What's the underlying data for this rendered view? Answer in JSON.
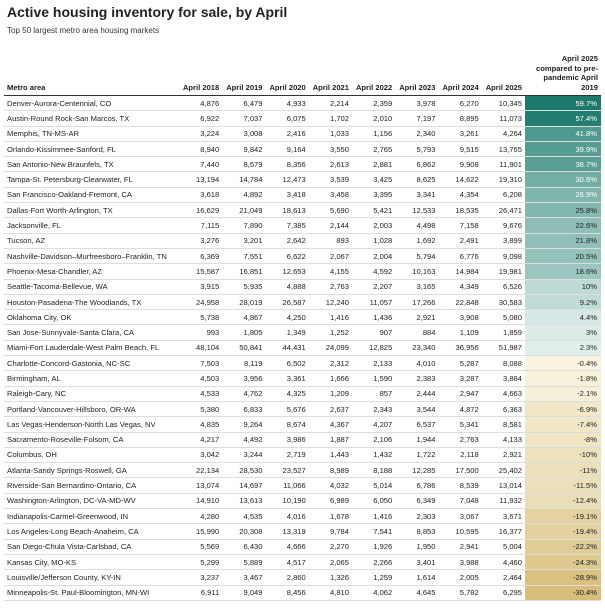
{
  "header": {
    "title": "Active housing inventory for sale, by April",
    "subtitle": "Top 50 largest metro area housing markets"
  },
  "table": {
    "columns": [
      "Metro area",
      "April 2018",
      "April 2019",
      "April 2020",
      "April 2021",
      "April 2022",
      "April 2023",
      "April 2024",
      "April 2025",
      "April 2025 compared to pre-pandemic April 2019"
    ],
    "rows": [
      [
        "Denver-Aurora-Centennial, CO",
        "4,876",
        "6,479",
        "4,933",
        "2,214",
        "2,359",
        "3,978",
        "6,270",
        "10,345",
        "59.7%"
      ],
      [
        "Austin-Round Rock-San Marcos, TX",
        "6,922",
        "7,037",
        "6,075",
        "1,702",
        "2,010",
        "7,197",
        "8,895",
        "11,073",
        "57.4%"
      ],
      [
        "Memphis, TN-MS-AR",
        "3,224",
        "3,008",
        "2,416",
        "1,033",
        "1,156",
        "2,340",
        "3,261",
        "4,264",
        "41.8%"
      ],
      [
        "Orlando-Kissimmee-Sanford, FL",
        "8,940",
        "9,842",
        "9,164",
        "3,550",
        "2,765",
        "5,793",
        "9,515",
        "13,765",
        "39.9%"
      ],
      [
        "San Antonio-New Braunfels, TX",
        "7,440",
        "8,579",
        "8,356",
        "2,613",
        "2,881",
        "6,862",
        "9,908",
        "11,901",
        "38.7%"
      ],
      [
        "Tampa-St. Petersburg-Clearwater, FL",
        "13,194",
        "14,784",
        "12,473",
        "3,539",
        "3,425",
        "8,625",
        "14,622",
        "19,310",
        "30.6%"
      ],
      [
        "San Francisco-Oakland-Fremont, CA",
        "3,618",
        "4,892",
        "3,418",
        "3,458",
        "3,395",
        "3,341",
        "4,354",
        "6,208",
        "26.9%"
      ],
      [
        "Dallas-Fort Worth-Arlington, TX",
        "16,629",
        "21,049",
        "18,613",
        "5,690",
        "5,421",
        "12,533",
        "18,535",
        "26,471",
        "25.8%"
      ],
      [
        "Jacksonville, FL",
        "7,115",
        "7,890",
        "7,385",
        "2,144",
        "2,003",
        "4,498",
        "7,158",
        "9,676",
        "22.6%"
      ],
      [
        "Tucson, AZ",
        "3,276",
        "3,201",
        "2,642",
        "893",
        "1,028",
        "1,692",
        "2,491",
        "3,899",
        "21.8%"
      ],
      [
        "Nashville-Davidson–Murfreesboro–Franklin, TN",
        "6,369",
        "7,551",
        "6,622",
        "2,067",
        "2,004",
        "5,794",
        "6,776",
        "9,098",
        "20.5%"
      ],
      [
        "Phoenix-Mesa-Chandler, AZ",
        "15,587",
        "16,851",
        "12,653",
        "4,155",
        "4,592",
        "10,163",
        "14,984",
        "19,981",
        "18.6%"
      ],
      [
        "Seattle-Tacoma-Bellevue, WA",
        "3,915",
        "5,935",
        "4,888",
        "2,763",
        "2,207",
        "3,165",
        "4,349",
        "6,526",
        "10%"
      ],
      [
        "Houston-Pasadena-The Woodlands, TX",
        "24,958",
        "28,019",
        "26,587",
        "12,240",
        "11,057",
        "17,266",
        "22,848",
        "30,583",
        "9.2%"
      ],
      [
        "Oklahoma City, OK",
        "5,738",
        "4,867",
        "4,250",
        "1,416",
        "1,436",
        "2,921",
        "3,908",
        "5,080",
        "4.4%"
      ],
      [
        "San Jose-Sunnyvale-Santa Clara, CA",
        "993",
        "1,805",
        "1,349",
        "1,252",
        "907",
        "884",
        "1,109",
        "1,859",
        "3%"
      ],
      [
        "Miami-Fort Lauderdale-West Palm Beach, FL",
        "48,104",
        "50,841",
        "44,431",
        "24,099",
        "12,825",
        "23,340",
        "36,956",
        "51,987",
        "2.3%"
      ],
      [
        "Charlotte-Concord-Gastonia, NC-SC",
        "7,503",
        "8,119",
        "6,502",
        "2,312",
        "2,133",
        "4,010",
        "5,287",
        "8,088",
        "-0.4%"
      ],
      [
        "Birmingham, AL",
        "4,503",
        "3,956",
        "3,361",
        "1,666",
        "1,590",
        "2,383",
        "3,287",
        "3,884",
        "-1.8%"
      ],
      [
        "Raleigh-Cary, NC",
        "4,533",
        "4,762",
        "4,325",
        "1,209",
        "857",
        "2,444",
        "2,947",
        "4,663",
        "-2.1%"
      ],
      [
        "Portland-Vancouver-Hillsboro, OR-WA",
        "5,380",
        "6,833",
        "5,676",
        "2,637",
        "2,343",
        "3,544",
        "4,872",
        "6,363",
        "-6.9%"
      ],
      [
        "Las Vegas-Henderson-North Las Vegas, NV",
        "4,835",
        "9,264",
        "8,674",
        "4,367",
        "4,207",
        "6,537",
        "5,341",
        "8,581",
        "-7.4%"
      ],
      [
        "Sacramento-Roseville-Folsom, CA",
        "4,217",
        "4,492",
        "3,986",
        "1,887",
        "2,106",
        "1,944",
        "2,763",
        "4,133",
        "-8%"
      ],
      [
        "Columbus, OH",
        "3,042",
        "3,244",
        "2,719",
        "1,443",
        "1,432",
        "1,722",
        "2,118",
        "2,921",
        "-10%"
      ],
      [
        "Atlanta-Sandy Springs-Roswell, GA",
        "22,134",
        "28,530",
        "23,527",
        "8,989",
        "8,188",
        "12,285",
        "17,500",
        "25,402",
        "-11%"
      ],
      [
        "Riverside-San Bernardino-Ontario, CA",
        "13,074",
        "14,697",
        "11,066",
        "4,032",
        "5,014",
        "6,786",
        "8,539",
        "13,014",
        "-11.5%"
      ],
      [
        "Washington-Arlington, DC-VA-MD-WV",
        "14,910",
        "13,613",
        "10,190",
        "6,989",
        "6,050",
        "6,349",
        "7,048",
        "11,932",
        "-12.4%"
      ],
      [
        "Indianapolis-Carmel-Greenwood, IN",
        "4,280",
        "4,535",
        "4,016",
        "1,678",
        "1,416",
        "2,303",
        "3,067",
        "3,671",
        "-19.1%"
      ],
      [
        "Los Angeles-Long Beach-Anaheim, CA",
        "15,990",
        "20,308",
        "13,319",
        "9,784",
        "7,541",
        "8,853",
        "10,595",
        "16,377",
        "-19.4%"
      ],
      [
        "San Diego-Chula Vista-Carlsbad, CA",
        "5,569",
        "6,430",
        "4,666",
        "2,270",
        "1,926",
        "1,950",
        "2,941",
        "5,004",
        "-22.2%"
      ],
      [
        "Kansas City, MO-KS",
        "5,299",
        "5,889",
        "4,517",
        "2,065",
        "2,266",
        "3,401",
        "3,988",
        "4,460",
        "-24.3%"
      ],
      [
        "Louisville/Jefferson County, KY-IN",
        "3,237",
        "3,467",
        "2,860",
        "1,326",
        "1,259",
        "1,614",
        "2,005",
        "2,464",
        "-28.9%"
      ],
      [
        "Minneapolis-St. Paul-Bloomington, MN-WI",
        "6,911",
        "9,049",
        "8,456",
        "4,810",
        "4,062",
        "4,645",
        "5,782",
        "6,295",
        "-30.4%"
      ]
    ]
  }
}
